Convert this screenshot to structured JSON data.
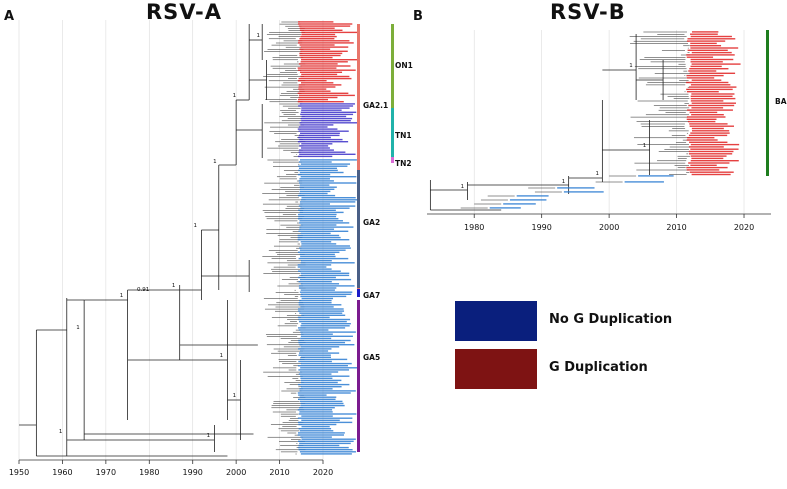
{
  "panel_a": {
    "letter": "A",
    "title": "RSV-A",
    "axis_ticks": [
      "1950",
      "1960",
      "1970",
      "1980",
      "1990",
      "2000",
      "2010",
      "2020"
    ],
    "clades": [
      {
        "label": "ON1",
        "color": "#7cae3a"
      },
      {
        "label": "GA2.1",
        "color": "#e8766b"
      },
      {
        "label": "TN1",
        "color": "#20b2aa"
      },
      {
        "label": "TN2",
        "color": "#d96ad6"
      },
      {
        "label": "GA2",
        "color": "#4a5f86"
      },
      {
        "label": "GA7",
        "color": "#1c1cc8"
      },
      {
        "label": "GA5",
        "color": "#7b1b8f"
      }
    ],
    "node_labels": [
      "1",
      "1",
      "1",
      "1",
      "1",
      "1",
      "1",
      "0.91",
      "1",
      "1",
      "1",
      "1"
    ]
  },
  "panel_b": {
    "letter": "B",
    "title": "RSV-B",
    "axis_ticks": [
      "1980",
      "1990",
      "2000",
      "2010",
      "2020"
    ],
    "clades": [
      {
        "label": "BA",
        "color": "#1e7d1e"
      }
    ],
    "node_labels": [
      "1",
      "1",
      "1",
      "1",
      "1"
    ]
  },
  "legend": [
    {
      "label": "No G Duplication",
      "color": "#0a1f7d"
    },
    {
      "label": "G Duplication",
      "color": "#7e1313"
    }
  ],
  "colors": {
    "red_tips": "#e02020",
    "blue_tips": "#2b7bd1",
    "purple_tips": "#3b2fc8",
    "branch": "#222222",
    "grid": "#dcdcdc"
  }
}
